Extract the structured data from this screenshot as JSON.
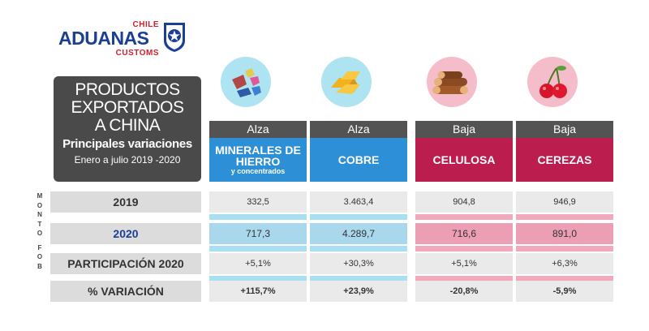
{
  "logo": {
    "top": "CHILE",
    "main": "ADUANAS",
    "bottom": "CUSTOMS"
  },
  "title": {
    "line1": "PRODUCTOS",
    "line2": "EXPORTADOS",
    "line3": "A CHINA",
    "subtitle": "Principales variaciones",
    "period": "Enero a julio 2019 -2020"
  },
  "side_label": "MONTO FOB",
  "colors": {
    "blue_header": "#2d8fd6",
    "pink_header": "#bc1d4f",
    "title_box": "#4a4a4a"
  },
  "chart_data": {
    "type": "table",
    "title": "PRODUCTOS EXPORTADOS A CHINA - Principales variaciones (Enero a julio 2019 -2020)",
    "columns": [
      {
        "trend": "Alza",
        "name": "MINERALES DE HIERRO",
        "subname": "y concentrados",
        "icon": "minerals-icon"
      },
      {
        "trend": "Alza",
        "name": "COBRE",
        "subname": "",
        "icon": "copper-bars-icon"
      },
      {
        "trend": "Baja",
        "name": "CELULOSA",
        "subname": "",
        "icon": "logs-icon"
      },
      {
        "trend": "Baja",
        "name": "CEREZAS",
        "subname": "",
        "icon": "cherries-icon"
      }
    ],
    "rows": [
      {
        "label": "2019",
        "values": [
          "332,5",
          "3.463,4",
          "904,8",
          "946,9"
        ]
      },
      {
        "label": "2020",
        "values": [
          "717,3",
          "4.289,7",
          "716,6",
          "891,0"
        ]
      },
      {
        "label": "PARTICIPACIÓN 2020",
        "values": [
          "+5,1%",
          "+30,3%",
          "+5,1%",
          "+6,3%"
        ]
      },
      {
        "label": "% VARIACIÓN",
        "values": [
          "+115,7%",
          "+23,9%",
          "-20,8%",
          "-5,9%"
        ]
      }
    ]
  }
}
